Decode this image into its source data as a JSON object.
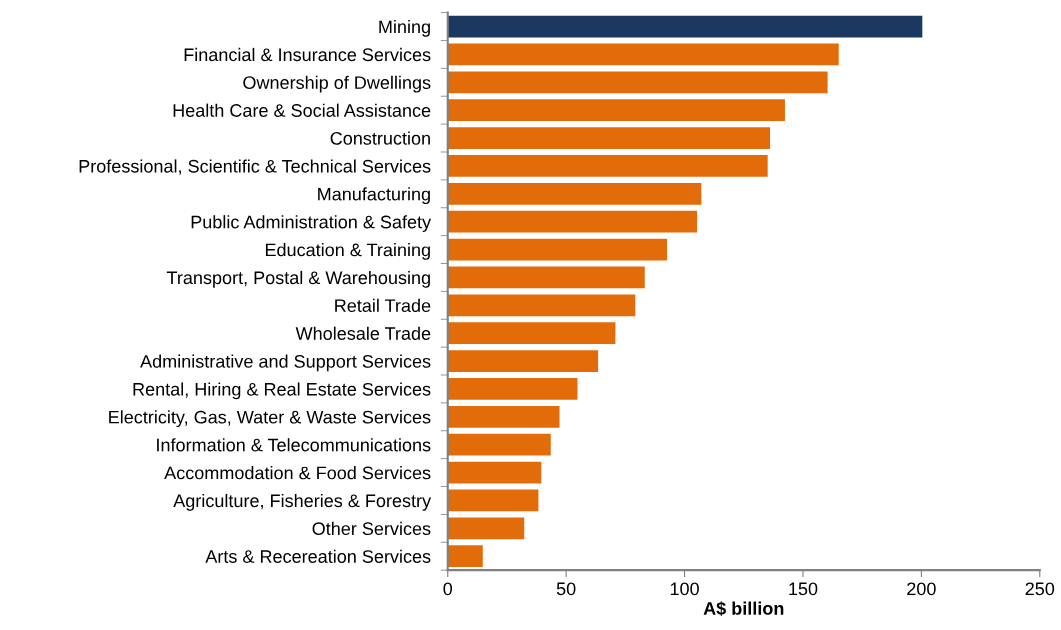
{
  "chart_data": {
    "type": "bar",
    "orientation": "horizontal",
    "xlabel": "A$ billion",
    "categories": [
      "Mining",
      "Financial & Insurance Services",
      "Ownership of Dwellings",
      "Health Care & Social Assistance",
      "Construction",
      "Professional, Scientific & Technical Services",
      "Manufacturing",
      "Public Administration & Safety",
      "Education & Training",
      "Transport, Postal & Warehousing",
      "Retail Trade",
      "Wholesale Trade",
      "Administrative and Support Services",
      "Rental, Hiring & Real Estate Services",
      "Electricity, Gas, Water & Waste Services",
      "Information & Telecommunications",
      "Accommodation & Food Services",
      "Agriculture, Fisheries & Forestry",
      "Other Services",
      "Arts & Recereation Services"
    ],
    "values": [
      200.4,
      165.1,
      160.4,
      142.4,
      136.1,
      135.1,
      107.1,
      105.3,
      92.6,
      83.2,
      79.2,
      70.8,
      63.5,
      54.8,
      47.2,
      43.5,
      39.5,
      38.3,
      32.3,
      14.8
    ],
    "colors": [
      "#1a3860",
      "#e36c0a",
      "#e36c0a",
      "#e36c0a",
      "#e36c0a",
      "#e36c0a",
      "#e36c0a",
      "#e36c0a",
      "#e36c0a",
      "#e36c0a",
      "#e36c0a",
      "#e36c0a",
      "#e36c0a",
      "#e36c0a",
      "#e36c0a",
      "#e36c0a",
      "#e36c0a",
      "#e36c0a",
      "#e36c0a",
      "#e36c0a"
    ],
    "xlim": [
      0,
      250
    ],
    "xticks": [
      0,
      50,
      100,
      150,
      200,
      250
    ],
    "grid": false,
    "legend": false
  }
}
